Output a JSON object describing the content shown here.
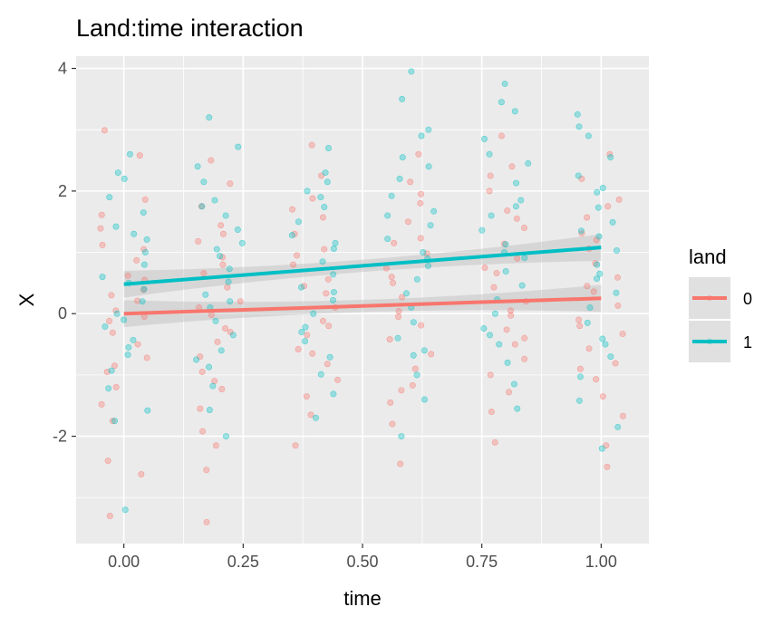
{
  "chart_data": {
    "type": "scatter",
    "title": "Land:time interaction",
    "xlabel": "time",
    "ylabel": "X",
    "xlim": [
      -0.1,
      1.1
    ],
    "ylim": [
      -3.75,
      4.2
    ],
    "x_ticks": [
      0.0,
      0.25,
      0.5,
      0.75,
      1.0
    ],
    "x_tick_labels": [
      "0.00",
      "0.25",
      "0.50",
      "0.75",
      "1.00"
    ],
    "y_ticks": [
      -2,
      0,
      2,
      4
    ],
    "y_tick_labels": [
      "-2",
      "0",
      "2",
      "4"
    ],
    "grid": true,
    "legend": {
      "title": "land",
      "position": "right",
      "entries": [
        "0",
        "1"
      ]
    },
    "colors": {
      "0": "#F8766D",
      "1": "#00BFC4",
      "panel": "#EBEBEB",
      "grid": "#FFFFFF",
      "ribbon": "#BDBDBD"
    },
    "jitter": 0.05,
    "series": [
      {
        "name": "0",
        "fit": {
          "intercept": 0.0,
          "slope": 0.25
        },
        "points": {
          "0.00": [
            2.99,
            2.58,
            1.86,
            1.61,
            1.39,
            1.12,
            0.87,
            0.62,
            0.39,
            0.21,
            0.05,
            -0.12,
            -0.31,
            -0.5,
            -0.72,
            -0.95,
            -1.2,
            -1.48,
            -1.75,
            -2.4,
            -2.62,
            -3.3,
            1.05,
            0.3,
            -0.05,
            0.55,
            -0.85
          ],
          "0.25": [
            2.5,
            2.12,
            1.75,
            1.44,
            1.18,
            0.92,
            0.66,
            0.43,
            0.2,
            -0.02,
            -0.24,
            -0.46,
            -0.7,
            -0.95,
            -1.23,
            -1.55,
            -1.92,
            -2.15,
            -2.55,
            -3.4,
            0.8,
            0.1,
            -0.3,
            1.3,
            -1.1
          ],
          "0.50": [
            2.75,
            2.25,
            1.88,
            1.57,
            1.3,
            1.05,
            0.8,
            0.56,
            0.33,
            0.1,
            -0.12,
            -0.35,
            -0.58,
            -0.82,
            -1.08,
            -1.35,
            -1.65,
            -2.15,
            0.95,
            0.45,
            -0.2,
            1.7,
            -0.65
          ],
          "0.75": [
            2.6,
            2.15,
            1.8,
            1.5,
            1.23,
            0.98,
            0.74,
            0.5,
            0.27,
            0.04,
            -0.19,
            -0.42,
            -0.66,
            -0.9,
            -1.17,
            -1.45,
            -1.8,
            -2.45,
            1.15,
            0.6,
            -0.05,
            1.95,
            -1.25
          ],
          "1.00": [
            2.9,
            2.4,
            2.0,
            1.68,
            1.4,
            1.14,
            0.9,
            0.66,
            0.43,
            0.2,
            -0.03,
            -0.26,
            -0.5,
            -0.74,
            -1.0,
            -1.28,
            -1.6,
            -2.1,
            1.55,
            0.75,
            0.05,
            -0.4,
            2.25
          ],
          "1.25": [
            2.6,
            2.2,
            1.86,
            1.57,
            1.31,
            1.06,
            0.82,
            0.59,
            0.36,
            0.13,
            -0.1,
            -0.33,
            -0.57,
            -0.81,
            -1.07,
            -1.35,
            -1.67,
            -2.15,
            -2.5,
            1.2,
            0.45,
            -0.2,
            1.75,
            -0.9
          ]
        }
      },
      {
        "name": "1",
        "fit": {
          "intercept": 0.48,
          "slope": 0.6
        },
        "points": {
          "0.00": [
            2.6,
            2.2,
            1.9,
            1.65,
            1.42,
            1.21,
            1.0,
            0.8,
            0.6,
            0.4,
            0.2,
            0.0,
            -0.21,
            -0.43,
            -0.67,
            -0.93,
            -1.22,
            -1.58,
            -1.75,
            -3.2,
            1.3,
            0.5,
            -0.1,
            2.3,
            -0.55
          ],
          "0.25": [
            3.2,
            2.72,
            2.15,
            1.85,
            1.6,
            1.37,
            1.15,
            0.94,
            0.73,
            0.52,
            0.31,
            0.1,
            -0.12,
            -0.35,
            -0.6,
            -0.87,
            -1.18,
            -1.57,
            -2.0,
            1.75,
            1.05,
            0.2,
            2.4,
            -0.75
          ],
          "0.50": [
            2.7,
            2.3,
            2.0,
            1.74,
            1.5,
            1.28,
            1.06,
            0.85,
            0.64,
            0.43,
            0.22,
            0.0,
            -0.22,
            -0.45,
            -0.71,
            -0.99,
            -1.31,
            -1.7,
            1.9,
            1.15,
            0.35,
            -0.3,
            2.15
          ],
          "0.75": [
            3.95,
            3.5,
            3.0,
            2.55,
            2.2,
            1.92,
            1.67,
            1.44,
            1.22,
            1.0,
            0.78,
            0.56,
            0.33,
            0.1,
            -0.14,
            -0.4,
            -0.68,
            -1.0,
            -1.4,
            -2.0,
            2.9,
            1.6,
            0.9,
            -0.6,
            2.4
          ],
          "1.00": [
            3.75,
            3.3,
            2.85,
            2.45,
            2.13,
            1.85,
            1.6,
            1.36,
            1.13,
            0.91,
            0.69,
            0.46,
            0.23,
            0.0,
            -0.24,
            -0.5,
            -0.8,
            -1.15,
            -1.55,
            2.6,
            1.75,
            1.0,
            -0.35,
            3.45
          ],
          "1.25": [
            3.25,
            2.9,
            2.55,
            2.25,
            1.98,
            1.73,
            1.49,
            1.26,
            1.03,
            0.8,
            0.57,
            0.34,
            0.1,
            -0.15,
            -0.41,
            -0.7,
            -1.03,
            -1.42,
            -1.85,
            -2.2,
            2.05,
            1.35,
            0.65,
            -0.5,
            3.05
          ]
        }
      }
    ]
  }
}
